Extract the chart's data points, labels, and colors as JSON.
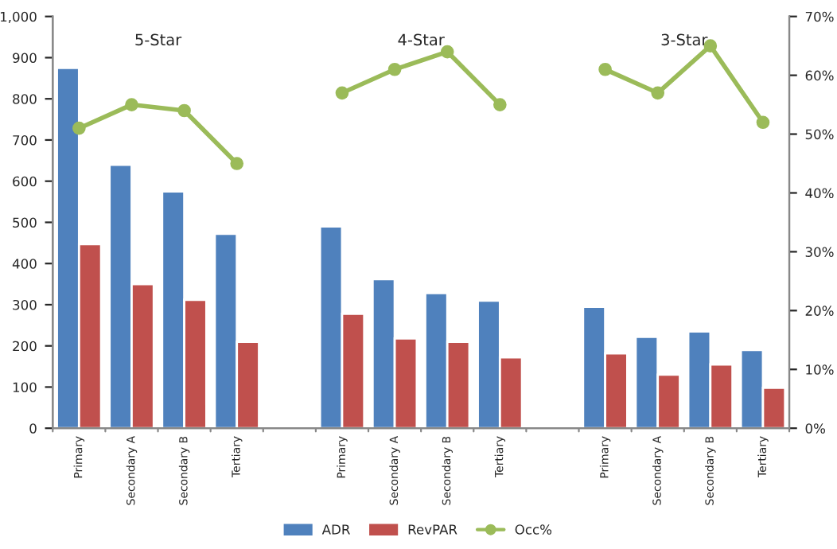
{
  "chart_data": {
    "type": "bar",
    "categories": [
      "Primary",
      "Secondary A",
      "Secondary B",
      "Tertiary",
      null,
      "Primary",
      "Secondary A",
      "Secondary B",
      "Tertiary",
      null,
      "Primary",
      "Secondary A",
      "Secondary B",
      "Tertiary"
    ],
    "series": [
      {
        "name": "ADR",
        "color": "#4f81bd",
        "values": [
          875,
          640,
          575,
          472,
          null,
          490,
          362,
          328,
          310,
          null,
          295,
          222,
          235,
          190
        ]
      },
      {
        "name": "RevPAR",
        "color": "#c0504d",
        "values": [
          447,
          350,
          312,
          210,
          null,
          278,
          218,
          210,
          172,
          null,
          182,
          130,
          155,
          98
        ]
      },
      {
        "name": "Occ%",
        "color": "#9bbb59",
        "type": "line",
        "axis": "y2",
        "marker": "circle",
        "values": [
          51,
          55,
          54,
          45,
          null,
          57,
          61,
          64,
          55,
          null,
          61,
          57,
          65,
          52
        ]
      }
    ],
    "annotations": [
      "5-Star",
      "4-Star",
      "3-Star"
    ],
    "ylim": [
      0,
      1000
    ],
    "yticks": [
      0,
      100,
      200,
      300,
      400,
      500,
      600,
      700,
      800,
      900,
      {
        "value": 1000,
        "label": "1,000"
      }
    ],
    "y2lim": [
      0,
      70
    ],
    "y2ticks": [
      {
        "value": 0,
        "label": "0%"
      },
      {
        "value": 10,
        "label": "10%"
      },
      {
        "value": 20,
        "label": "20%"
      },
      {
        "value": 30,
        "label": "30%"
      },
      {
        "value": 40,
        "label": "40%"
      },
      {
        "value": 50,
        "label": "50%"
      },
      {
        "value": 60,
        "label": "60%"
      },
      {
        "value": 70,
        "label": "70%"
      }
    ],
    "grid": false,
    "legend": "bottom"
  }
}
